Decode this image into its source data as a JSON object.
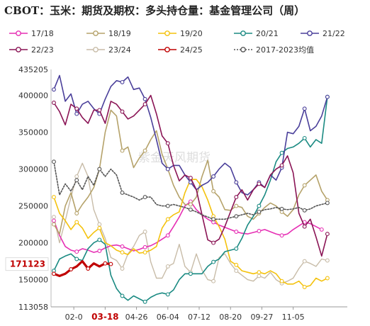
{
  "chart_data": {
    "type": "line",
    "title": "CBOT：玉米：期货及期权：多头持仓量：基金管理公司（周）",
    "watermark": "紫金天风期货",
    "ylim": [
      113058,
      435205
    ],
    "y_ticks": [
      {
        "value": 435205,
        "label": "435205"
      },
      {
        "value": 400000,
        "label": "400000"
      },
      {
        "value": 350000,
        "label": "350000"
      },
      {
        "value": 300000,
        "label": "300000"
      },
      {
        "value": 250000,
        "label": "250000"
      },
      {
        "value": 200000,
        "label": "200000"
      },
      {
        "value": 150000,
        "label": "150000"
      },
      {
        "value": 113058,
        "label": "113058"
      }
    ],
    "x_ticks": [
      "02-0",
      "03-18",
      "04-26",
      "06-04",
      "07-12",
      "08-20",
      "09-27",
      "11-05"
    ],
    "x_tick_weeks": [
      3.5,
      9,
      14.5,
      20,
      25.5,
      31,
      36.5,
      42
    ],
    "highlight": {
      "x_label": "03-18",
      "y_label": "171123",
      "value": 171123,
      "color": "#c00000"
    },
    "series": [
      {
        "name": "17/18",
        "color": "#e62fb4",
        "dash": "",
        "marker": "circle-open",
        "width": 1.6,
        "values": [
          230000,
          210000,
          195000,
          190000,
          188000,
          192000,
          190000,
          187000,
          189000,
          193000,
          196000,
          197000,
          195000,
          192000,
          189000,
          191000,
          194000,
          196000,
          200000,
          205000,
          210000,
          222000,
          235000,
          250000,
          256000,
          245000,
          238000,
          232000,
          228000,
          224000,
          221000,
          218000,
          215000,
          213000,
          212000,
          214000,
          216000,
          218000,
          215000,
          212000,
          210000,
          212000,
          218000,
          223000,
          228000,
          226000,
          222000,
          218000
        ]
      },
      {
        "name": "18/19",
        "color": "#b5a26a",
        "dash": "",
        "marker": "circle-open",
        "width": 1.6,
        "values": [
          225000,
          212000,
          250000,
          268000,
          240000,
          252000,
          262000,
          275000,
          300000,
          350000,
          380000,
          372000,
          325000,
          330000,
          302000,
          315000,
          325000,
          340000,
          352000,
          320000,
          300000,
          278000,
          262000,
          252000,
          252000,
          262000,
          290000,
          312000,
          270000,
          262000,
          245000,
          244000,
          250000,
          248000,
          236000,
          232000,
          240000,
          248000,
          254000,
          250000,
          242000,
          236000,
          245000,
          265000,
          278000,
          285000,
          292000,
          270000,
          258000
        ]
      },
      {
        "name": "19/20",
        "color": "#f4c20d",
        "dash": "",
        "marker": "circle-open",
        "width": 1.6,
        "values": [
          262000,
          240000,
          230000,
          218000,
          228000,
          220000,
          206000,
          214000,
          220000,
          200000,
          196000,
          190000,
          187000,
          184000,
          192000,
          186000,
          187000,
          190000,
          195000,
          220000,
          232000,
          238000,
          242000,
          268000,
          286000,
          286000,
          276000,
          258000,
          236000,
          222000,
          205000,
          175000,
          170000,
          162000,
          160000,
          158000,
          160000,
          158000,
          162000,
          158000,
          148000,
          144000,
          144000,
          148000,
          140000,
          142000,
          152000,
          148000,
          152000
        ]
      },
      {
        "name": "20/21",
        "color": "#1a8a82",
        "dash": "",
        "marker": "circle-open",
        "width": 1.6,
        "values": [
          162000,
          178000,
          182000,
          185000,
          178000,
          176000,
          192000,
          200000,
          204000,
          198000,
          156000,
          138000,
          128000,
          122000,
          128000,
          124000,
          120000,
          126000,
          130000,
          132000,
          130000,
          136000,
          150000,
          158000,
          158000,
          158000,
          158000,
          168000,
          174000,
          178000,
          188000,
          190000,
          192000,
          206000,
          224000,
          236000,
          250000,
          265000,
          285000,
          310000,
          322000,
          328000,
          330000,
          335000,
          342000,
          330000,
          340000,
          335000,
          398000
        ]
      },
      {
        "name": "21/22",
        "color": "#4a3f9a",
        "dash": "",
        "marker": "circle-open",
        "width": 1.6,
        "values": [
          408000,
          427000,
          392000,
          402000,
          375000,
          388000,
          392000,
          382000,
          375000,
          395000,
          412000,
          420000,
          418000,
          425000,
          408000,
          410000,
          395000,
          370000,
          340000,
          308000,
          300000,
          305000,
          305000,
          292000,
          282000,
          272000,
          278000,
          282000,
          290000,
          300000,
          308000,
          302000,
          282000,
          268000,
          265000,
          272000,
          282000,
          275000,
          292000,
          285000,
          302000,
          350000,
          348000,
          358000,
          382000,
          352000,
          358000,
          372000,
          398000
        ]
      },
      {
        "name": "22/23",
        "color": "#8a1455",
        "dash": "",
        "marker": "circle-open",
        "width": 1.6,
        "values": [
          390000,
          378000,
          360000,
          388000,
          382000,
          370000,
          362000,
          380000,
          380000,
          362000,
          392000,
          388000,
          378000,
          368000,
          372000,
          380000,
          388000,
          400000,
          375000,
          345000,
          335000,
          305000,
          284000,
          292000,
          288000,
          272000,
          238000,
          204000,
          200000,
          205000,
          222000,
          242000,
          262000,
          272000,
          258000,
          272000,
          280000,
          275000,
          292000,
          300000,
          305000,
          318000,
          295000,
          240000,
          222000,
          232000,
          208000,
          182000,
          212000
        ]
      },
      {
        "name": "23/24",
        "color": "#c8bca8",
        "dash": "",
        "marker": "circle-open",
        "width": 1.4,
        "values": [
          235000,
          200000,
          230000,
          262000,
          290000,
          308000,
          290000,
          245000,
          225000,
          206000,
          180000,
          176000,
          165000,
          185000,
          195000,
          210000,
          215000,
          174000,
          152000,
          152000,
          168000,
          172000,
          198000,
          168000,
          160000,
          185000,
          163000,
          150000,
          148000,
          180000,
          185000,
          172000,
          162000,
          156000,
          150000,
          148000,
          155000,
          152000,
          160000,
          150000,
          145000,
          148000,
          152000,
          165000,
          175000,
          172000,
          168000,
          178000,
          176000
        ]
      },
      {
        "name": "24/25",
        "color": "#c00000",
        "dash": "",
        "marker": "circle-open",
        "width": 3.2,
        "values": [
          158000,
          155000,
          158000,
          164000,
          168000,
          175000,
          165000,
          172000,
          168000,
          172000,
          171123
        ]
      },
      {
        "name": "2017-2023均值",
        "color": "#555555",
        "dash": "2,2",
        "marker": "circle-open",
        "width": 1.6,
        "values": [
          310000,
          265000,
          280000,
          270000,
          285000,
          272000,
          290000,
          278000,
          300000,
          290000,
          300000,
          292000,
          268000,
          265000,
          262000,
          258000,
          262000,
          262000,
          252000,
          250000,
          250000,
          252000,
          250000,
          248000,
          245000,
          242000,
          238000,
          235000,
          232000,
          232000,
          232000,
          234000,
          236000,
          238000,
          240000,
          238000,
          242000,
          245000,
          246000,
          248000,
          246000,
          245000,
          246000,
          248000,
          244000,
          246000,
          250000,
          252000,
          254000
        ]
      }
    ]
  }
}
